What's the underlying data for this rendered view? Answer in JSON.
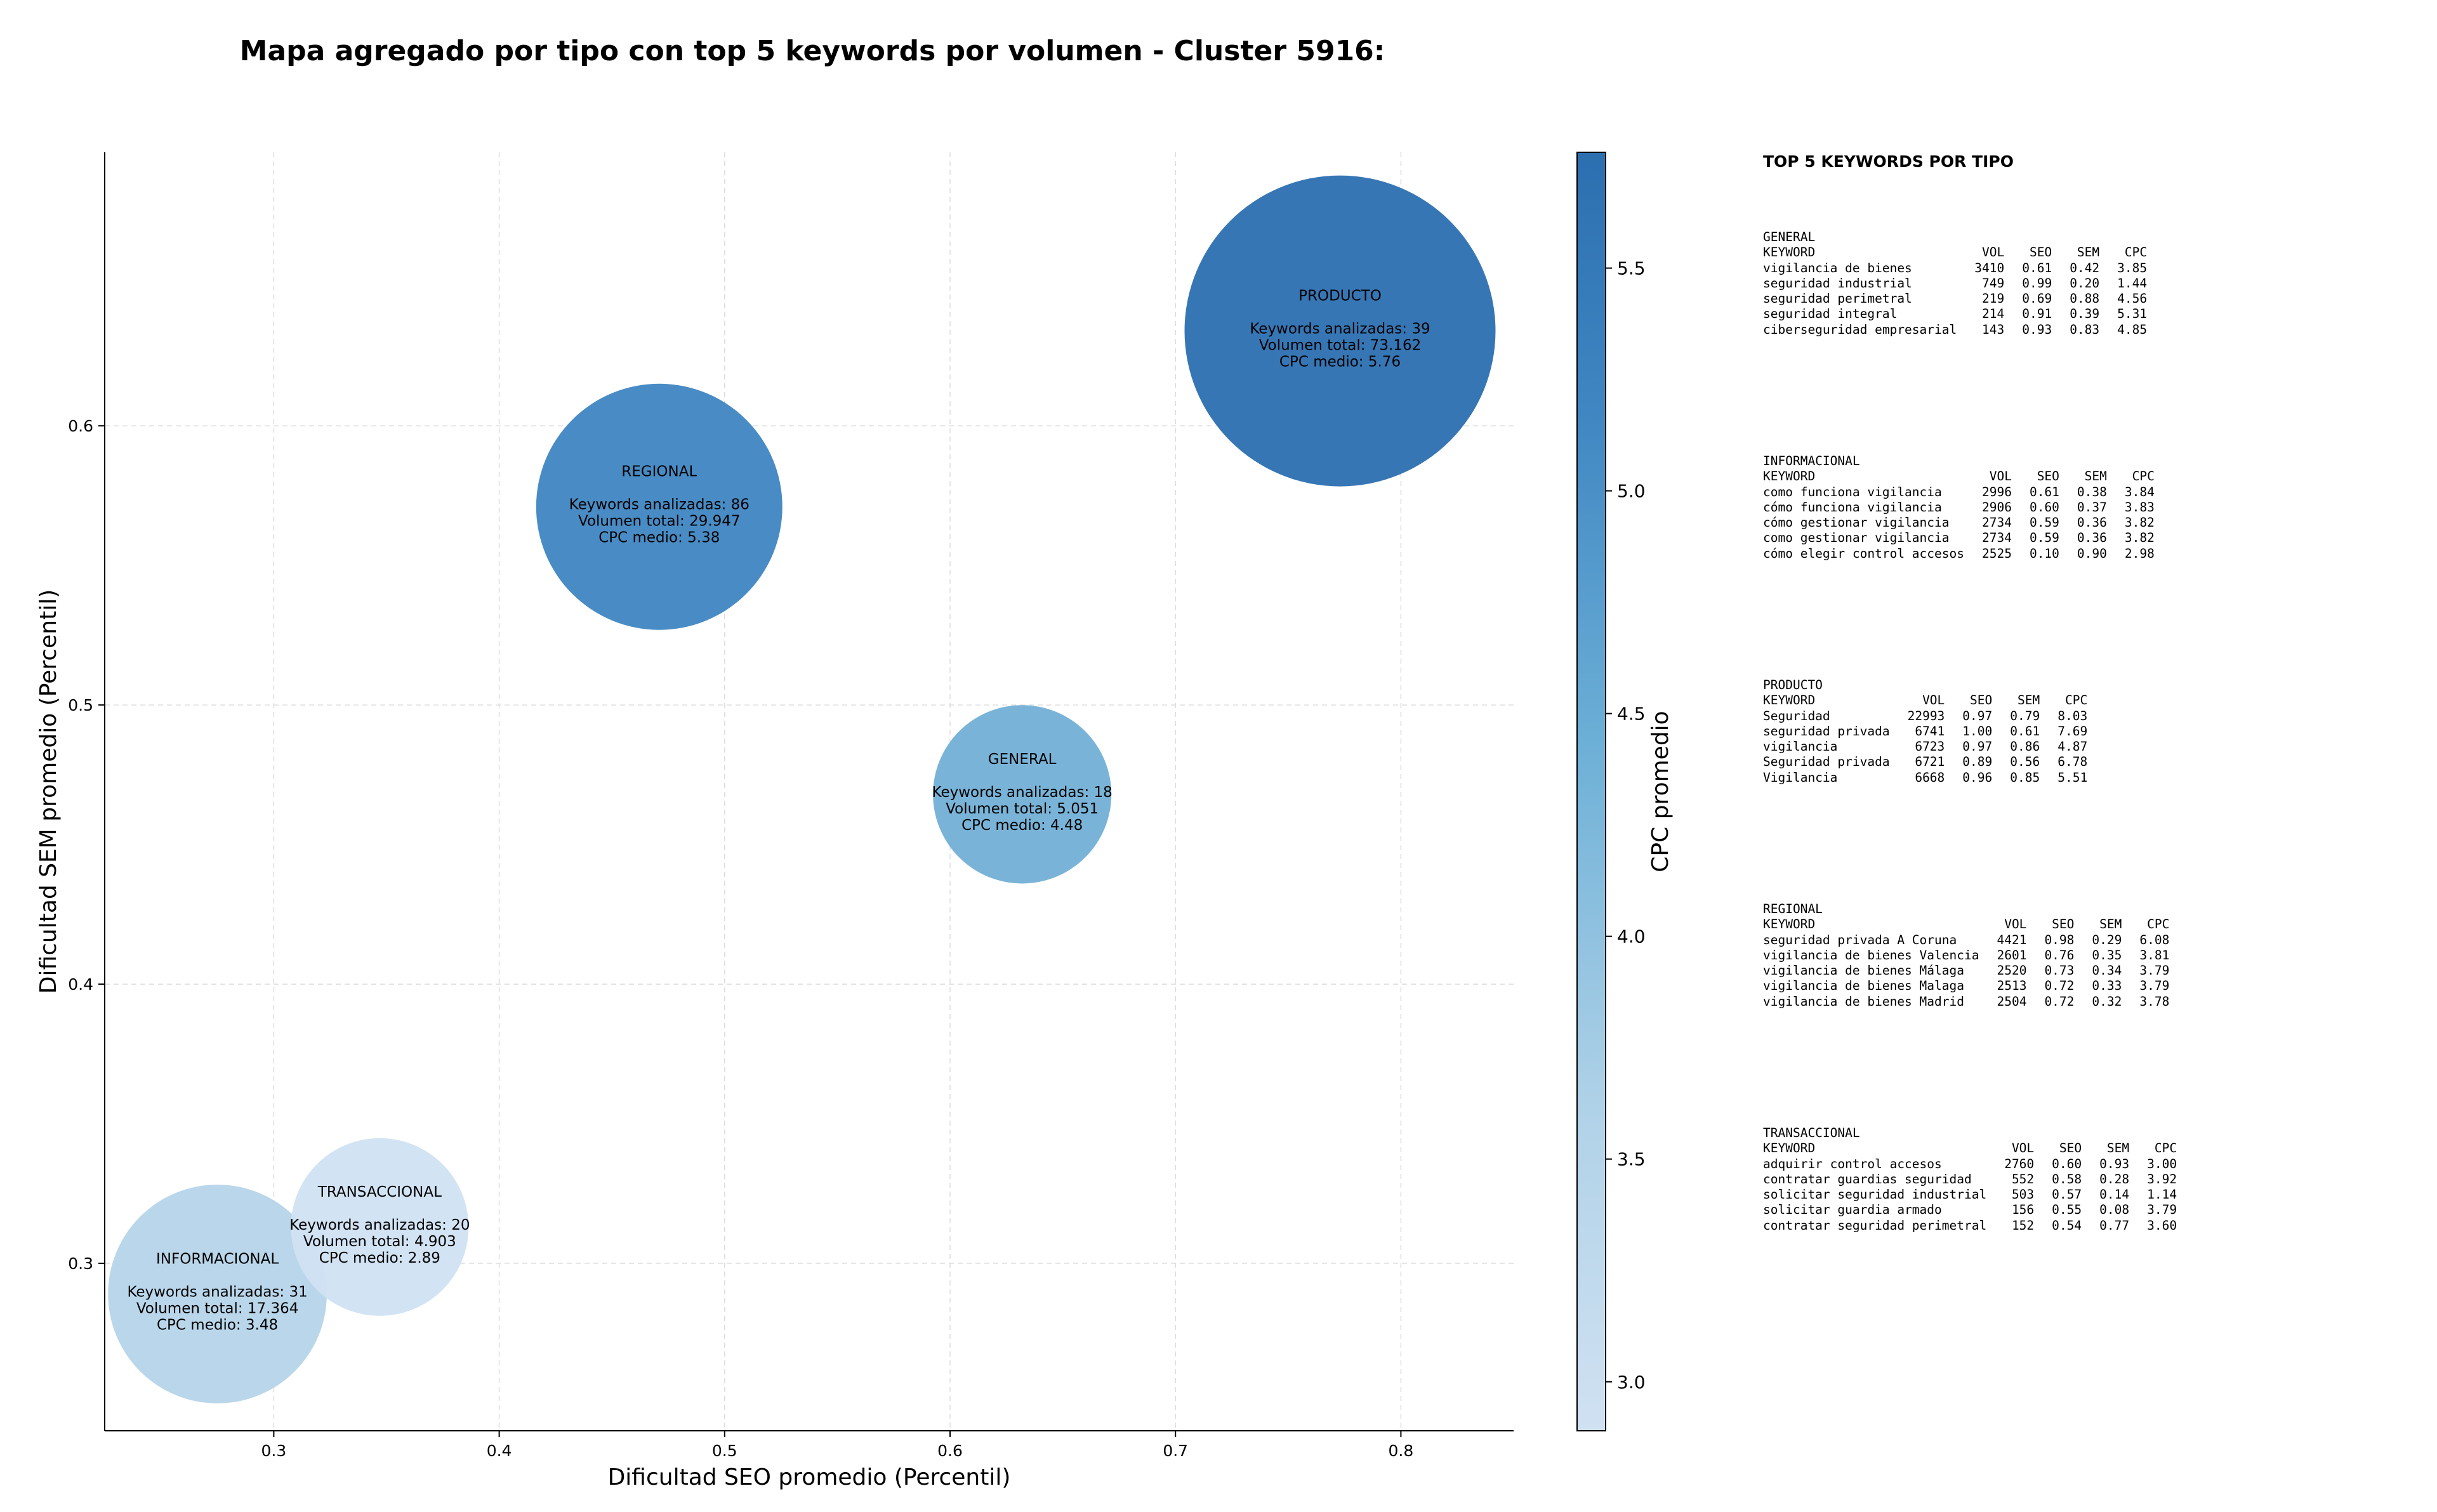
{
  "title": "Mapa agregado por tipo con top 5 keywords por volumen - Cluster 5916:",
  "chart_data": {
    "type": "scatter",
    "subtype": "bubble",
    "xlabel": "Dificultad SEO promedio (Percentil)",
    "ylabel": "Dificultad SEM promedio (Percentil)",
    "xlim": [
      0.225,
      0.85
    ],
    "ylim": [
      0.24,
      0.698
    ],
    "xticks": [
      "0.3",
      "0.4",
      "0.5",
      "0.6",
      "0.7",
      "0.8"
    ],
    "yticks": [
      "0.3",
      "0.4",
      "0.5",
      "0.6"
    ],
    "grid": true,
    "colorbar": {
      "label": "CPC promedio",
      "range": [
        2.89,
        5.76
      ],
      "ticks": [
        "3.0",
        "3.5",
        "4.0",
        "4.5",
        "5.0",
        "5.5"
      ],
      "colormap": "Blues"
    },
    "points": [
      {
        "name": "PRODUCTO",
        "x": 0.773,
        "y": 0.634,
        "keywords_label": "Keywords analizadas: 39",
        "volume_label": "Volumen total: 73.162",
        "cpc_label": "CPC medio: 5.76",
        "volume": 73162,
        "cpc": 5.76,
        "color": "#2c6fb0"
      },
      {
        "name": "REGIONAL",
        "x": 0.471,
        "y": 0.571,
        "keywords_label": "Keywords analizadas: 86",
        "volume_label": "Volumen total: 29.947",
        "cpc_label": "CPC medio: 5.38",
        "volume": 29947,
        "cpc": 5.38,
        "color": "#3f86c2"
      },
      {
        "name": "GENERAL",
        "x": 0.632,
        "y": 0.468,
        "keywords_label": "Keywords analizadas: 18",
        "volume_label": "Volumen total: 5.051",
        "cpc_label": "CPC medio: 4.48",
        "volume": 5051,
        "cpc": 4.48,
        "color": "#72b0d6"
      },
      {
        "name": "INFORMACIONAL",
        "x": 0.275,
        "y": 0.289,
        "keywords_label": "Keywords analizadas: 31",
        "volume_label": "Volumen total: 17.364",
        "cpc_label": "CPC medio: 3.48",
        "volume": 17364,
        "cpc": 3.48,
        "color": "#b6d4e9"
      },
      {
        "name": "TRANSACCIONAL",
        "x": 0.347,
        "y": 0.313,
        "keywords_label": "Keywords analizadas: 20",
        "volume_label": "Volumen total: 4.903",
        "cpc_label": "CPC medio: 2.89",
        "volume": 4903,
        "cpc": 2.89,
        "color": "#d0e1f2"
      }
    ]
  },
  "tables": {
    "title": "TOP 5 KEYWORDS POR TIPO",
    "columns": [
      "KEYWORD",
      "VOL",
      "SEO",
      "SEM",
      "CPC"
    ],
    "groups": [
      {
        "name": "GENERAL",
        "rows": [
          [
            "vigilancia de bienes",
            "3410",
            "0.61",
            "0.42",
            "3.85"
          ],
          [
            "seguridad industrial",
            "749",
            "0.99",
            "0.20",
            "1.44"
          ],
          [
            "seguridad perimetral",
            "219",
            "0.69",
            "0.88",
            "4.56"
          ],
          [
            "seguridad integral",
            "214",
            "0.91",
            "0.39",
            "5.31"
          ],
          [
            "ciberseguridad empresarial",
            "143",
            "0.93",
            "0.83",
            "4.85"
          ]
        ]
      },
      {
        "name": "INFORMACIONAL",
        "rows": [
          [
            "como funciona vigilancia",
            "2996",
            "0.61",
            "0.38",
            "3.84"
          ],
          [
            "cómo funciona vigilancia",
            "2906",
            "0.60",
            "0.37",
            "3.83"
          ],
          [
            "cómo gestionar vigilancia",
            "2734",
            "0.59",
            "0.36",
            "3.82"
          ],
          [
            "como gestionar vigilancia",
            "2734",
            "0.59",
            "0.36",
            "3.82"
          ],
          [
            "cómo elegir control accesos",
            "2525",
            "0.10",
            "0.90",
            "2.98"
          ]
        ]
      },
      {
        "name": "PRODUCTO",
        "rows": [
          [
            "Seguridad",
            "22993",
            "0.97",
            "0.79",
            "8.03"
          ],
          [
            "seguridad privada",
            "6741",
            "1.00",
            "0.61",
            "7.69"
          ],
          [
            "vigilancia",
            "6723",
            "0.97",
            "0.86",
            "4.87"
          ],
          [
            "Seguridad privada",
            "6721",
            "0.89",
            "0.56",
            "6.78"
          ],
          [
            "Vigilancia",
            "6668",
            "0.96",
            "0.85",
            "5.51"
          ]
        ]
      },
      {
        "name": "REGIONAL",
        "rows": [
          [
            "seguridad privada A Coruna",
            "4421",
            "0.98",
            "0.29",
            "6.08"
          ],
          [
            "vigilancia de bienes Valencia",
            "2601",
            "0.76",
            "0.35",
            "3.81"
          ],
          [
            "vigilancia de bienes Málaga",
            "2520",
            "0.73",
            "0.34",
            "3.79"
          ],
          [
            "vigilancia de bienes Malaga",
            "2513",
            "0.72",
            "0.33",
            "3.79"
          ],
          [
            "vigilancia de bienes Madrid",
            "2504",
            "0.72",
            "0.32",
            "3.78"
          ]
        ]
      },
      {
        "name": "TRANSACCIONAL",
        "rows": [
          [
            "adquirir control accesos",
            "2760",
            "0.60",
            "0.93",
            "3.00"
          ],
          [
            "contratar guardias seguridad",
            "552",
            "0.58",
            "0.28",
            "3.92"
          ],
          [
            "solicitar seguridad industrial",
            "503",
            "0.57",
            "0.14",
            "1.14"
          ],
          [
            "solicitar guardia armado",
            "156",
            "0.55",
            "0.08",
            "3.79"
          ],
          [
            "contratar seguridad perimetral",
            "152",
            "0.54",
            "0.77",
            "3.60"
          ]
        ]
      }
    ]
  }
}
